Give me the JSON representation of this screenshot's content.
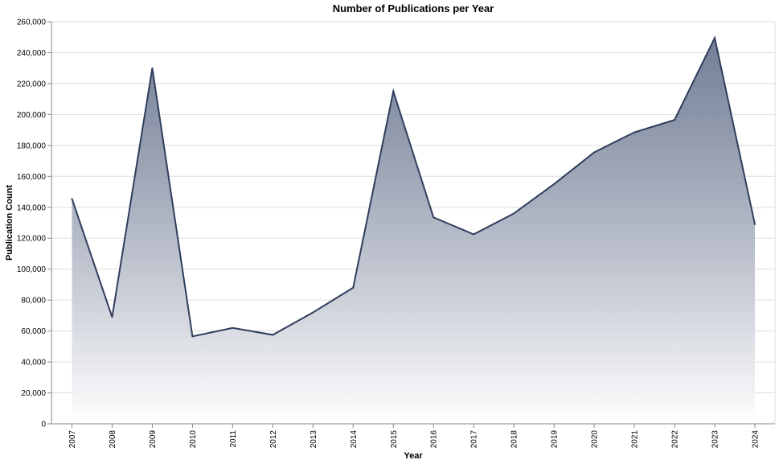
{
  "chart_data": {
    "type": "area",
    "title": "Number of Publications per Year",
    "xlabel": "Year",
    "ylabel": "Publication Count",
    "x": [
      "2007",
      "2008",
      "2009",
      "2010",
      "2011",
      "2012",
      "2013",
      "2014",
      "2015",
      "2016",
      "2017",
      "2018",
      "2019",
      "2020",
      "2021",
      "2022",
      "2023",
      "2024"
    ],
    "values": [
      145500,
      69000,
      230000,
      56500,
      62000,
      57500,
      72000,
      88000,
      215000,
      133500,
      122500,
      136000,
      155000,
      175500,
      188500,
      196500,
      249500,
      129000
    ],
    "ylim": [
      0,
      260000
    ],
    "yticks": [
      "0",
      "20,000",
      "40,000",
      "60,000",
      "80,000",
      "100,000",
      "120,000",
      "140,000",
      "160,000",
      "180,000",
      "200,000",
      "220,000",
      "240,000",
      "260,000"
    ],
    "ytick_values": [
      0,
      20000,
      40000,
      60000,
      80000,
      100000,
      120000,
      140000,
      160000,
      180000,
      200000,
      220000,
      240000,
      260000
    ],
    "grid": true,
    "colors": {
      "line": "#2f3e5c",
      "fill_top": "#5b6884",
      "fill_bottom": "#ffffff"
    }
  }
}
